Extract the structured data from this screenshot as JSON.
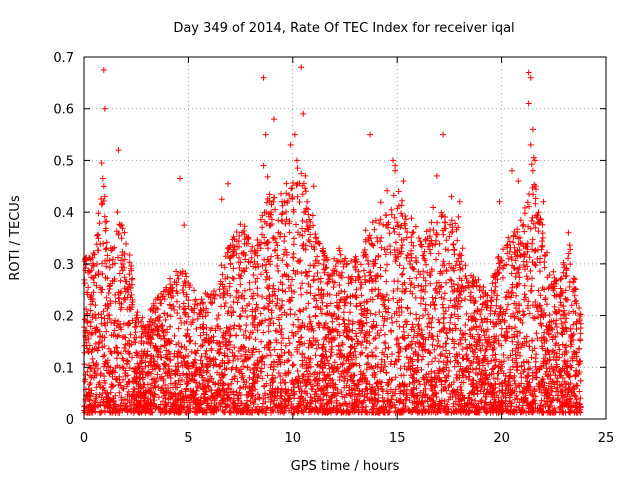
{
  "chart_data": {
    "type": "scatter",
    "title": "Day 349 of 2014, Rate Of TEC Index for receiver iqal",
    "xlabel": "GPS time / hours",
    "ylabel": "ROTI / TECUs",
    "xlim": [
      0,
      25
    ],
    "ylim": [
      0,
      0.7
    ],
    "xticks": [
      0,
      5,
      10,
      15,
      20,
      25
    ],
    "xtick_labels": [
      "0",
      "5",
      "10",
      "15",
      "20",
      "25"
    ],
    "yticks": [
      0,
      0.1,
      0.2,
      0.3,
      0.4,
      0.5,
      0.6,
      0.7
    ],
    "ytick_labels": [
      "0",
      "0.1",
      "0.2",
      "0.3",
      "0.4",
      "0.5",
      "0.6",
      "0.7"
    ],
    "grid": true,
    "marker": "plus",
    "color": "#ff0000",
    "x_range_of_data": [
      0,
      23.8
    ],
    "envelope": [
      [
        0.0,
        0.3
      ],
      [
        0.5,
        0.33
      ],
      [
        0.9,
        0.45
      ],
      [
        1.2,
        0.32
      ],
      [
        1.7,
        0.4
      ],
      [
        2.2,
        0.33
      ],
      [
        2.5,
        0.22
      ],
      [
        3.0,
        0.18
      ],
      [
        3.5,
        0.24
      ],
      [
        4.0,
        0.26
      ],
      [
        4.6,
        0.3
      ],
      [
        5.0,
        0.27
      ],
      [
        5.5,
        0.22
      ],
      [
        6.0,
        0.24
      ],
      [
        6.5,
        0.27
      ],
      [
        7.0,
        0.36
      ],
      [
        7.5,
        0.38
      ],
      [
        8.0,
        0.33
      ],
      [
        8.5,
        0.4
      ],
      [
        8.8,
        0.45
      ],
      [
        9.3,
        0.42
      ],
      [
        9.7,
        0.44
      ],
      [
        10.1,
        0.48
      ],
      [
        10.4,
        0.5
      ],
      [
        10.8,
        0.4
      ],
      [
        11.2,
        0.35
      ],
      [
        11.8,
        0.3
      ],
      [
        12.3,
        0.32
      ],
      [
        12.8,
        0.3
      ],
      [
        13.3,
        0.33
      ],
      [
        13.8,
        0.38
      ],
      [
        14.2,
        0.4
      ],
      [
        14.6,
        0.44
      ],
      [
        15.0,
        0.46
      ],
      [
        15.4,
        0.4
      ],
      [
        15.9,
        0.36
      ],
      [
        16.4,
        0.35
      ],
      [
        16.9,
        0.42
      ],
      [
        17.4,
        0.38
      ],
      [
        17.8,
        0.4
      ],
      [
        18.3,
        0.3
      ],
      [
        18.8,
        0.27
      ],
      [
        19.3,
        0.25
      ],
      [
        19.8,
        0.3
      ],
      [
        20.3,
        0.34
      ],
      [
        20.8,
        0.37
      ],
      [
        21.2,
        0.42
      ],
      [
        21.5,
        0.5
      ],
      [
        21.9,
        0.38
      ],
      [
        22.3,
        0.28
      ],
      [
        22.8,
        0.27
      ],
      [
        23.3,
        0.33
      ],
      [
        23.8,
        0.22
      ]
    ],
    "notable_points": [
      {
        "x": 0.95,
        "y": 0.675
      },
      {
        "x": 1.0,
        "y": 0.6
      },
      {
        "x": 0.85,
        "y": 0.495
      },
      {
        "x": 0.9,
        "y": 0.465
      },
      {
        "x": 0.95,
        "y": 0.45
      },
      {
        "x": 1.0,
        "y": 0.43
      },
      {
        "x": 1.65,
        "y": 0.52
      },
      {
        "x": 1.6,
        "y": 0.4
      },
      {
        "x": 4.6,
        "y": 0.465
      },
      {
        "x": 4.8,
        "y": 0.375
      },
      {
        "x": 6.6,
        "y": 0.425
      },
      {
        "x": 6.9,
        "y": 0.455
      },
      {
        "x": 8.6,
        "y": 0.66
      },
      {
        "x": 8.7,
        "y": 0.55
      },
      {
        "x": 8.6,
        "y": 0.49
      },
      {
        "x": 9.1,
        "y": 0.58
      },
      {
        "x": 9.9,
        "y": 0.53
      },
      {
        "x": 10.1,
        "y": 0.55
      },
      {
        "x": 10.2,
        "y": 0.5
      },
      {
        "x": 10.4,
        "y": 0.68
      },
      {
        "x": 10.5,
        "y": 0.59
      },
      {
        "x": 10.6,
        "y": 0.47
      },
      {
        "x": 11.0,
        "y": 0.45
      },
      {
        "x": 13.7,
        "y": 0.55
      },
      {
        "x": 14.8,
        "y": 0.5
      },
      {
        "x": 14.9,
        "y": 0.49
      },
      {
        "x": 14.9,
        "y": 0.48
      },
      {
        "x": 15.3,
        "y": 0.46
      },
      {
        "x": 16.9,
        "y": 0.47
      },
      {
        "x": 17.2,
        "y": 0.55
      },
      {
        "x": 17.6,
        "y": 0.43
      },
      {
        "x": 18.0,
        "y": 0.42
      },
      {
        "x": 19.9,
        "y": 0.42
      },
      {
        "x": 20.5,
        "y": 0.48
      },
      {
        "x": 20.8,
        "y": 0.46
      },
      {
        "x": 21.3,
        "y": 0.67
      },
      {
        "x": 21.4,
        "y": 0.66
      },
      {
        "x": 21.3,
        "y": 0.61
      },
      {
        "x": 21.5,
        "y": 0.56
      },
      {
        "x": 21.4,
        "y": 0.53
      },
      {
        "x": 21.6,
        "y": 0.5
      },
      {
        "x": 21.5,
        "y": 0.48
      },
      {
        "x": 22.0,
        "y": 0.42
      },
      {
        "x": 23.2,
        "y": 0.36
      }
    ]
  }
}
